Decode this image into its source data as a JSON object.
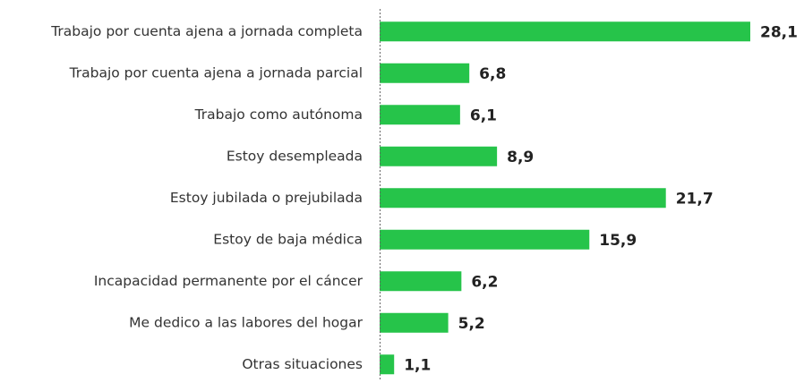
{
  "chart_data": {
    "type": "bar",
    "orientation": "horizontal",
    "categories": [
      "Trabajo por cuenta ajena a jornada completa",
      "Trabajo por cuenta ajena a jornada parcial",
      "Trabajo como autónoma",
      "Estoy desempleada",
      "Estoy jubilada o prejubilada",
      "Estoy de baja médica",
      "Incapacidad permanente por el cáncer",
      "Me dedico a las labores del hogar",
      "Otras situaciones"
    ],
    "values": [
      28.1,
      6.8,
      6.1,
      8.9,
      21.7,
      15.9,
      6.2,
      5.2,
      1.1
    ],
    "value_labels": [
      "28,1",
      "6,8",
      "6,1",
      "8,9",
      "21,7",
      "15,9",
      "6,2",
      "5,2",
      "1,1"
    ],
    "color": "#26c44a",
    "xlim": [
      0,
      30
    ]
  }
}
